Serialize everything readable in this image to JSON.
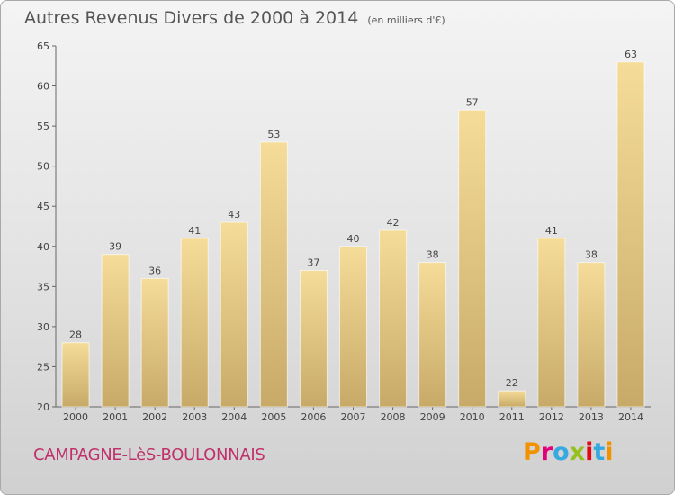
{
  "header": {
    "title": "Autres Revenus Divers de 2000 à 2014",
    "subtitle": "(en milliers d'€)"
  },
  "footer": {
    "commune": "CAMPAGNE-LèS-BOULONNAIS",
    "logo": "Proxiti"
  },
  "colors": {
    "bar_light": "#f5dc98",
    "bar_dark": "#c8aa68",
    "commune_text": "#c0306a",
    "logo_letters": [
      "#f39200",
      "#e2007a",
      "#36a9e1",
      "#95c11f",
      "#e30613",
      "#36a9e1",
      "#f39200"
    ]
  },
  "chart_data": {
    "type": "bar",
    "title": "Autres Revenus Divers de 2000 à 2014",
    "subtitle": "(en milliers d'€)",
    "xlabel": "",
    "ylabel": "",
    "categories": [
      "2000",
      "2001",
      "2002",
      "2003",
      "2004",
      "2005",
      "2006",
      "2007",
      "2008",
      "2009",
      "2010",
      "2011",
      "2012",
      "2013",
      "2014"
    ],
    "values": [
      28,
      39,
      36,
      41,
      43,
      53,
      37,
      40,
      42,
      38,
      57,
      22,
      41,
      38,
      63
    ],
    "ylim": [
      20,
      65
    ],
    "yticks": [
      20,
      25,
      30,
      35,
      40,
      45,
      50,
      55,
      60,
      65
    ],
    "grid": false,
    "data_labels": true
  }
}
